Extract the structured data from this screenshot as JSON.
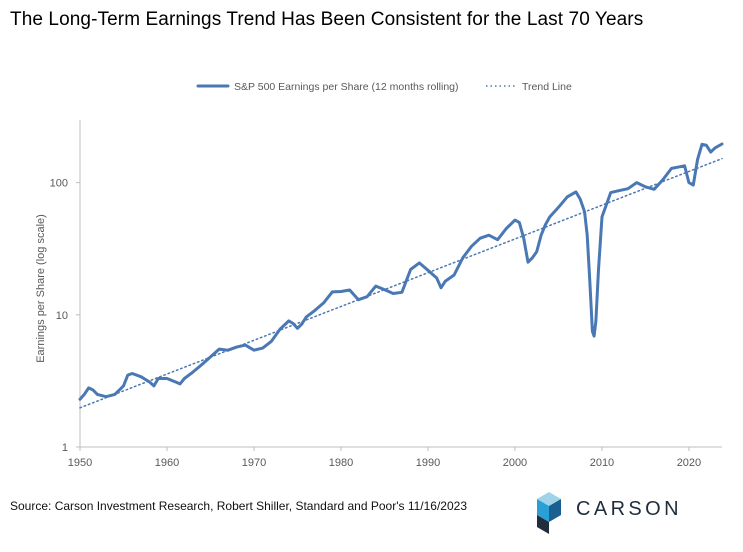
{
  "title": "The Long-Term Earnings Trend Has Been Consistent for the Last 70 Years",
  "source": "Source: Carson Investment Research, Robert Shiller, Standard and Poor's 11/16/2023",
  "logo_text": "CARSON",
  "colors": {
    "series": "#4a78b4",
    "trend": "#4a78b4",
    "axis": "#bfbfbf",
    "text": "#595959"
  },
  "chart_data": {
    "type": "line",
    "title": "",
    "xlabel": "",
    "ylabel": "Earnings per Share (log scale)",
    "yscale": "log",
    "xlim": [
      1950,
      2023.8
    ],
    "ylim": [
      1,
      250
    ],
    "grid": false,
    "legend_position": "top-center",
    "x_ticks": [
      "1950",
      "1960",
      "1970",
      "1980",
      "1990",
      "2000",
      "2010",
      "2020"
    ],
    "y_ticks": [
      "1",
      "10",
      "100"
    ],
    "series": [
      {
        "name": "S&P 500 Earnings per Share (12 months rolling)",
        "style": "solid",
        "x": [
          1950,
          1950.5,
          1951,
          1951.5,
          1952,
          1953,
          1954,
          1955,
          1955.5,
          1956,
          1957,
          1958,
          1958.5,
          1959,
          1960,
          1961,
          1961.5,
          1962,
          1963,
          1964,
          1965,
          1966,
          1967,
          1968,
          1969,
          1970,
          1971,
          1972,
          1973,
          1974,
          1974.5,
          1975,
          1975.5,
          1976,
          1977,
          1978,
          1979,
          1980,
          1981,
          1982,
          1983,
          1984,
          1985,
          1986,
          1987,
          1988,
          1989,
          1990,
          1991,
          1991.5,
          1992,
          1993,
          1994,
          1995,
          1996,
          1997,
          1998,
          1999,
          2000,
          2000.5,
          2001,
          2001.5,
          2002,
          2002.5,
          2003,
          2003.5,
          2004,
          2005,
          2006,
          2007,
          2007.5,
          2008,
          2008.3,
          2008.6,
          2008.9,
          2009.1,
          2009.3,
          2009.6,
          2010,
          2011,
          2012,
          2013,
          2014,
          2015,
          2016,
          2017,
          2018,
          2019,
          2019.5,
          2020,
          2020.5,
          2021,
          2021.5,
          2022,
          2022.5,
          2023,
          2023.8
        ],
        "y": [
          2.3,
          2.5,
          2.8,
          2.7,
          2.5,
          2.4,
          2.5,
          2.9,
          3.5,
          3.6,
          3.4,
          3.1,
          2.9,
          3.3,
          3.3,
          3.1,
          3.0,
          3.3,
          3.7,
          4.2,
          4.8,
          5.5,
          5.4,
          5.7,
          5.9,
          5.4,
          5.6,
          6.3,
          7.8,
          9.0,
          8.6,
          7.9,
          8.5,
          9.6,
          10.8,
          12.3,
          14.9,
          15.0,
          15.4,
          13.0,
          13.7,
          16.5,
          15.5,
          14.5,
          14.8,
          22.0,
          24.7,
          21.7,
          19.0,
          16.0,
          18.0,
          20.0,
          27.0,
          33.0,
          38.0,
          40.0,
          37.0,
          45.0,
          52.0,
          50.0,
          38.0,
          25.0,
          27.0,
          30.0,
          40.0,
          48.0,
          55.0,
          65.0,
          78.0,
          85.0,
          75.0,
          60.0,
          40.0,
          18.0,
          7.5,
          6.9,
          9.0,
          22.0,
          55.0,
          84.0,
          87.0,
          90.0,
          100.0,
          93.0,
          89.0,
          105.0,
          128.0,
          132.0,
          134.0,
          100.0,
          96.0,
          150.0,
          195.0,
          192.0,
          170.0,
          183.0,
          196.0
        ]
      },
      {
        "name": "Trend Line",
        "style": "dotted",
        "x": [
          1950,
          2023.8
        ],
        "y": [
          1.98,
          152.0
        ]
      }
    ]
  }
}
